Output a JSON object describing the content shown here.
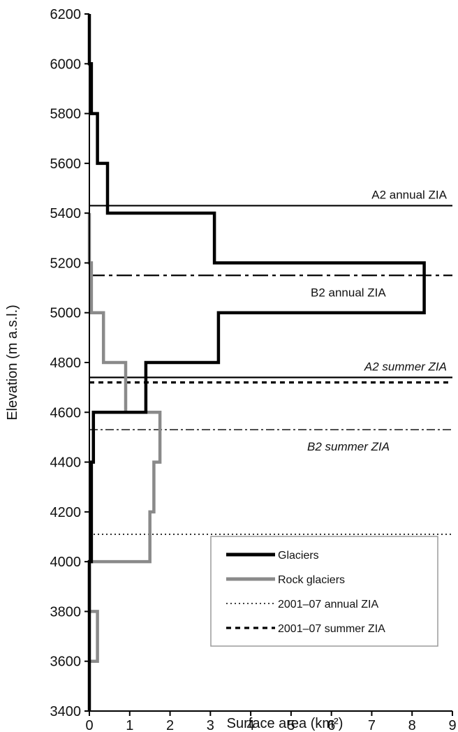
{
  "chart_data": {
    "type": "line",
    "title": "",
    "xlabel": "Surface area (km²)",
    "ylabel": "Elevation (m a.s.l.)",
    "xlim": [
      0,
      9
    ],
    "ylim": [
      3400,
      6200
    ],
    "x_ticks": [
      "0",
      "1",
      "2",
      "3",
      "4",
      "5",
      "6",
      "7",
      "8",
      "9"
    ],
    "y_ticks": [
      "3400",
      "3600",
      "3800",
      "4000",
      "4200",
      "4400",
      "4600",
      "4800",
      "5000",
      "5200",
      "5400",
      "5600",
      "5800",
      "6000",
      "6200"
    ],
    "grid": false,
    "legend_position": "bottom-right",
    "series": [
      {
        "name": "Glaciers",
        "color": "#000000",
        "style": "thick-solid",
        "points": [
          [
            0.0,
            3400
          ],
          [
            0.0,
            4000
          ],
          [
            0.05,
            4000
          ],
          [
            0.05,
            4200
          ],
          [
            0.05,
            4400
          ],
          [
            0.1,
            4400
          ],
          [
            0.1,
            4600
          ],
          [
            1.4,
            4600
          ],
          [
            1.4,
            4800
          ],
          [
            3.2,
            4800
          ],
          [
            3.2,
            5000
          ],
          [
            8.3,
            5000
          ],
          [
            8.3,
            5200
          ],
          [
            3.1,
            5200
          ],
          [
            3.1,
            5400
          ],
          [
            0.45,
            5400
          ],
          [
            0.45,
            5600
          ],
          [
            0.2,
            5600
          ],
          [
            0.2,
            5800
          ],
          [
            0.05,
            5800
          ],
          [
            0.05,
            6000
          ],
          [
            0.0,
            6000
          ],
          [
            0.0,
            6200
          ]
        ]
      },
      {
        "name": "Rock glaciers",
        "color": "#8a8a8a",
        "style": "thick-solid",
        "points": [
          [
            0.0,
            3600
          ],
          [
            0.2,
            3600
          ],
          [
            0.2,
            3800
          ],
          [
            0.0,
            3800
          ],
          [
            0.0,
            4000
          ],
          [
            1.5,
            4000
          ],
          [
            1.5,
            4200
          ],
          [
            1.6,
            4200
          ],
          [
            1.6,
            4400
          ],
          [
            1.75,
            4400
          ],
          [
            1.75,
            4600
          ],
          [
            0.9,
            4600
          ],
          [
            0.9,
            4800
          ],
          [
            0.35,
            4800
          ],
          [
            0.35,
            5000
          ],
          [
            0.05,
            5000
          ],
          [
            0.05,
            5200
          ],
          [
            0.0,
            5200
          ],
          [
            0.0,
            5400
          ]
        ]
      }
    ],
    "reference_lines": [
      {
        "name": "A2 annual ZIA",
        "elevation": 5430,
        "style": "solid",
        "label": "A2 annual ZIA",
        "italic": false
      },
      {
        "name": "B2 annual ZIA",
        "elevation": 5150,
        "style": "dashdot-long",
        "label": "B2 annual ZIA",
        "italic": false
      },
      {
        "name": "A2 summer ZIA",
        "elevation": 4740,
        "style": "solid",
        "label": "A2 summer ZIA",
        "italic": true
      },
      {
        "name": "2001–07 summer ZIA",
        "elevation": 4720,
        "style": "dashed-heavy",
        "label": "",
        "italic": false
      },
      {
        "name": "B2 summer ZIA",
        "elevation": 4530,
        "style": "dashdot-thin",
        "label": "B2 summer ZIA",
        "italic": true
      },
      {
        "name": "2001–07 annual ZIA",
        "elevation": 4110,
        "style": "dotted",
        "label": "",
        "italic": false
      }
    ],
    "legend": [
      {
        "label": "Glaciers",
        "style": "thick-black"
      },
      {
        "label": "Rock glaciers",
        "style": "thick-gray"
      },
      {
        "label": "2001–07 annual ZIA",
        "style": "dotted"
      },
      {
        "label": "2001–07 summer ZIA",
        "style": "dashed-heavy"
      }
    ]
  }
}
